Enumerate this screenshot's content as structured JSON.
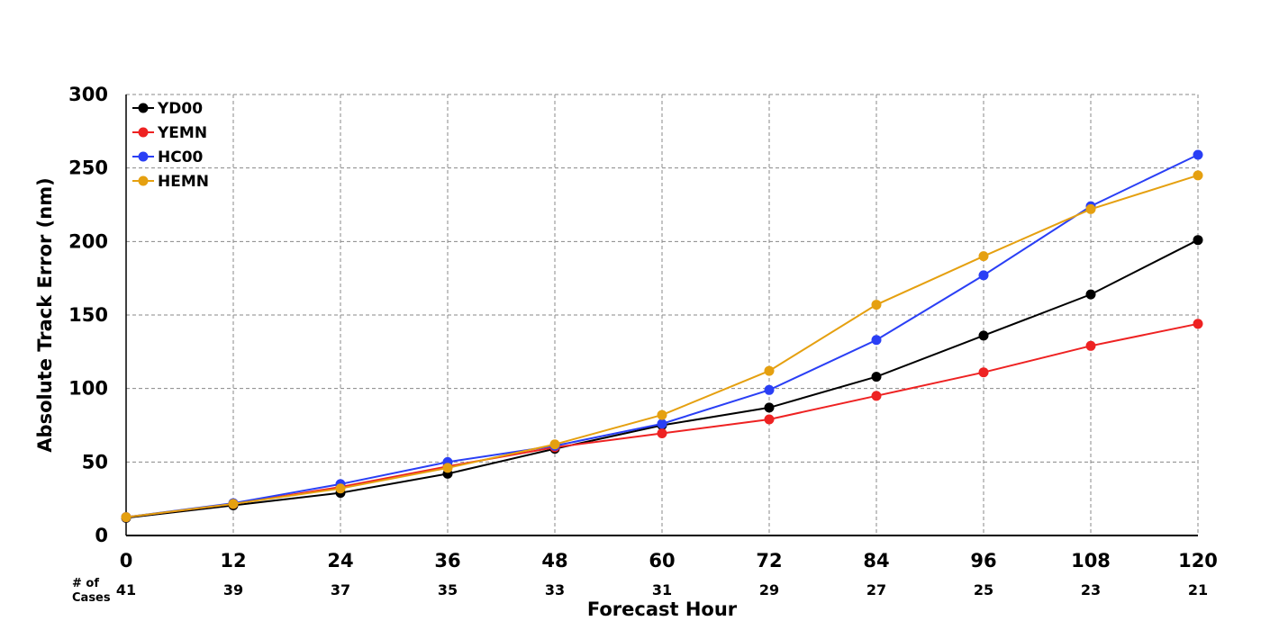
{
  "chart_data": {
    "type": "line",
    "xlabel": "Forecast Hour",
    "ylabel": "Absolute Track Error (nm)",
    "x": [
      0,
      12,
      24,
      36,
      48,
      60,
      72,
      84,
      96,
      108,
      120
    ],
    "xlim": [
      0,
      120
    ],
    "ylim": [
      0,
      300
    ],
    "yticks": [
      0,
      50,
      100,
      150,
      200,
      250,
      300
    ],
    "grid": true,
    "legend_position": "top-left",
    "cases_label_line1": "# of",
    "cases_label_line2": "Cases",
    "cases": [
      41,
      39,
      37,
      35,
      33,
      31,
      29,
      27,
      25,
      23,
      21
    ],
    "series": [
      {
        "name": "YD00",
        "color": "#000000",
        "values": [
          12,
          20.5,
          29,
          42,
          59,
          75,
          87,
          108,
          136,
          164,
          201
        ]
      },
      {
        "name": "YEMN",
        "color": "#ee2222",
        "values": [
          12.5,
          21.5,
          33,
          47,
          60,
          69.5,
          79,
          95,
          111,
          129,
          144
        ]
      },
      {
        "name": "HC00",
        "color": "#2a3ff5",
        "values": [
          12.5,
          22,
          35,
          50,
          61,
          76,
          99,
          133,
          177,
          224,
          259
        ]
      },
      {
        "name": "HEMN",
        "color": "#e5a010",
        "values": [
          12.5,
          21.5,
          32,
          46,
          62,
          82,
          112,
          157,
          190,
          222,
          245
        ]
      }
    ]
  }
}
